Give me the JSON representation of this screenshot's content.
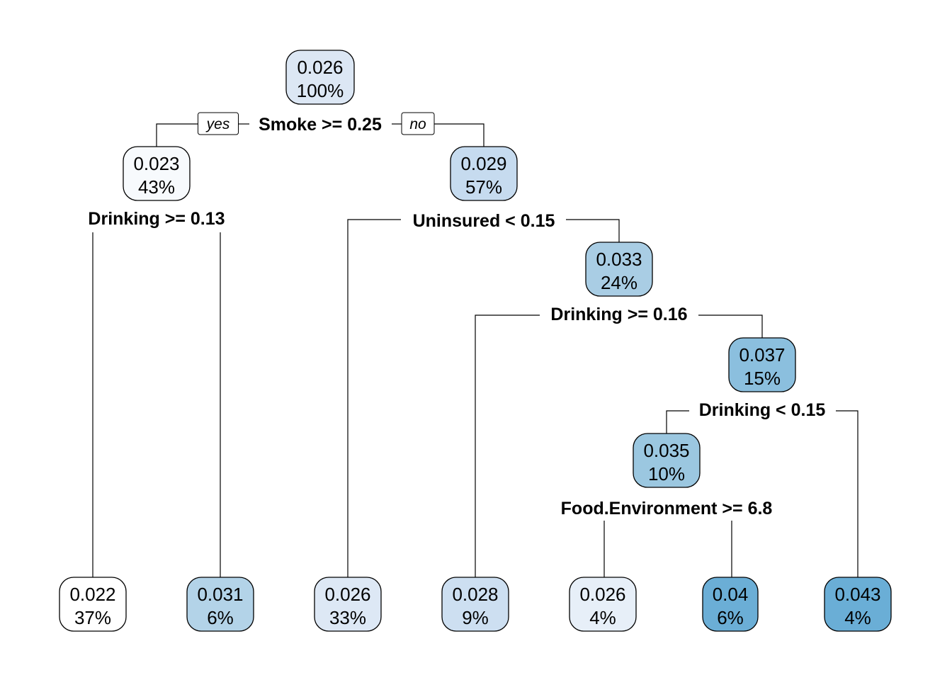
{
  "tree": {
    "branch_labels": {
      "yes": "yes",
      "no": "no"
    },
    "nodes": [
      {
        "id": "n1",
        "value": "0.026",
        "percent": "100%",
        "color": "#dce7f4"
      },
      {
        "id": "n2",
        "value": "0.023",
        "percent": "43%",
        "color": "#f7fafd"
      },
      {
        "id": "n3",
        "value": "0.029",
        "percent": "57%",
        "color": "#c6dbef"
      },
      {
        "id": "n7",
        "value": "0.033",
        "percent": "24%",
        "color": "#a9cde4"
      },
      {
        "id": "n15",
        "value": "0.037",
        "percent": "15%",
        "color": "#8bbfde"
      },
      {
        "id": "n30",
        "value": "0.035",
        "percent": "10%",
        "color": "#9bc7e0"
      },
      {
        "id": "n4",
        "value": "0.022",
        "percent": "37%",
        "color": "#ffffff"
      },
      {
        "id": "n5",
        "value": "0.031",
        "percent": "6%",
        "color": "#b3d3e8"
      },
      {
        "id": "n6",
        "value": "0.026",
        "percent": "33%",
        "color": "#dde8f5"
      },
      {
        "id": "n14",
        "value": "0.028",
        "percent": "9%",
        "color": "#cddff1"
      },
      {
        "id": "n60",
        "value": "0.026",
        "percent": "4%",
        "color": "#e7eff8"
      },
      {
        "id": "n61",
        "value": "0.04",
        "percent": "6%",
        "color": "#6baed6"
      },
      {
        "id": "n31",
        "value": "0.043",
        "percent": "4%",
        "color": "#6aaed6"
      }
    ],
    "splits": [
      {
        "id": "s1",
        "label": "Smoke >= 0.25"
      },
      {
        "id": "s2",
        "label": "Drinking >= 0.13"
      },
      {
        "id": "s3",
        "label": "Uninsured < 0.15"
      },
      {
        "id": "s7",
        "label": "Drinking >= 0.16"
      },
      {
        "id": "s15",
        "label": "Drinking < 0.15"
      },
      {
        "id": "s30",
        "label": "Food.Environment >= 6.8"
      }
    ]
  }
}
